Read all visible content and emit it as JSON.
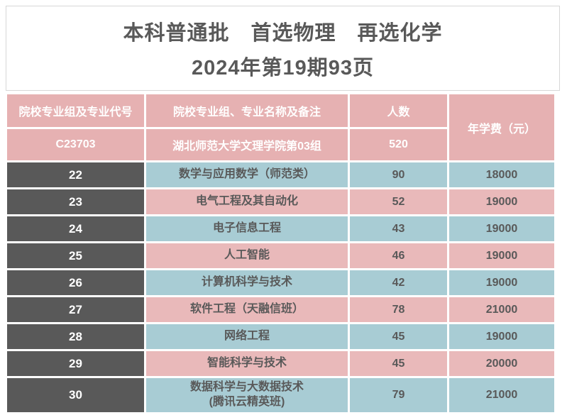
{
  "title": {
    "line1": "本科普通批　首选物理　再选化学",
    "line2": "2024年第19期93页"
  },
  "colors": {
    "header_pink": "#e6b1b2",
    "row_pink": "#e9b9ba",
    "row_blue": "#a8ccd4",
    "code_dark_gray": "#595959",
    "text_gray": "#595959",
    "title_border_gray": "#d7d7d7"
  },
  "table": {
    "headers": {
      "group_code": "院校专业组及专业代号",
      "major": "院校专业组、专业名称及备注",
      "count": "人数",
      "fee": "年学费（元）"
    },
    "group": {
      "code": "C23703",
      "name": "湖北师范大学文理学院第03组",
      "count": "520"
    },
    "rows": [
      {
        "code": "22",
        "major": "数学与应用数学（师范类）",
        "major_line2": "",
        "count": "90",
        "fee": "18000",
        "tone": "blue"
      },
      {
        "code": "23",
        "major": "电气工程及其自动化",
        "major_line2": "",
        "count": "52",
        "fee": "19000",
        "tone": "pink"
      },
      {
        "code": "24",
        "major": "电子信息工程",
        "major_line2": "",
        "count": "43",
        "fee": "19000",
        "tone": "blue"
      },
      {
        "code": "25",
        "major": "人工智能",
        "major_line2": "",
        "count": "46",
        "fee": "19000",
        "tone": "pink"
      },
      {
        "code": "26",
        "major": "计算机科学与技术",
        "major_line2": "",
        "count": "42",
        "fee": "19000",
        "tone": "blue"
      },
      {
        "code": "27",
        "major": "软件工程（天融信班）",
        "major_line2": "",
        "count": "78",
        "fee": "21000",
        "tone": "pink"
      },
      {
        "code": "28",
        "major": "网络工程",
        "major_line2": "",
        "count": "45",
        "fee": "19000",
        "tone": "blue"
      },
      {
        "code": "29",
        "major": "智能科学与技术",
        "major_line2": "",
        "count": "45",
        "fee": "20000",
        "tone": "pink"
      },
      {
        "code": "30",
        "major": "数据科学与大数据技术",
        "major_line2": "(腾讯云精英班)",
        "count": "79",
        "fee": "21000",
        "tone": "blue"
      }
    ]
  }
}
